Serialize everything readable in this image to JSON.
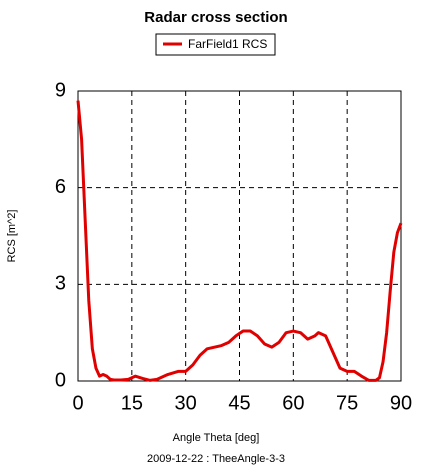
{
  "chart_data": {
    "type": "line",
    "title": "Radar cross section",
    "xlabel": "Angle Theta [deg]",
    "ylabel": "RCS [m^2]",
    "footnote": "2009-12-22 : TheeAngle-3-3",
    "x": [
      0,
      1,
      2,
      3,
      4,
      5,
      6,
      7,
      8,
      9,
      10,
      12,
      14,
      16,
      18,
      20,
      22,
      25,
      28,
      30,
      32,
      34,
      36,
      38,
      40,
      42,
      44,
      46,
      48,
      50,
      52,
      54,
      56,
      58,
      60,
      62,
      64,
      66,
      67,
      69,
      71,
      73,
      75,
      77,
      79,
      81,
      83,
      84,
      85,
      86,
      87,
      88,
      89,
      90
    ],
    "series": [
      {
        "name": "FarField1 RCS",
        "color": "#e00000",
        "values": [
          8.7,
          7.5,
          5.0,
          2.5,
          1.0,
          0.4,
          0.15,
          0.2,
          0.15,
          0.05,
          0.03,
          0.03,
          0.05,
          0.15,
          0.08,
          0.02,
          0.05,
          0.2,
          0.3,
          0.3,
          0.5,
          0.8,
          1.0,
          1.05,
          1.1,
          1.2,
          1.4,
          1.55,
          1.55,
          1.4,
          1.15,
          1.05,
          1.2,
          1.5,
          1.55,
          1.5,
          1.3,
          1.4,
          1.5,
          1.4,
          0.9,
          0.4,
          0.3,
          0.3,
          0.15,
          0.02,
          0.02,
          0.1,
          0.6,
          1.5,
          2.8,
          4.0,
          4.6,
          4.9
        ]
      }
    ],
    "xlim": [
      0,
      90
    ],
    "xticks": [
      0,
      15,
      30,
      45,
      60,
      75,
      90
    ],
    "ylim": [
      0,
      9
    ],
    "yticks": [
      0,
      3,
      6,
      9
    ],
    "grid": true
  }
}
